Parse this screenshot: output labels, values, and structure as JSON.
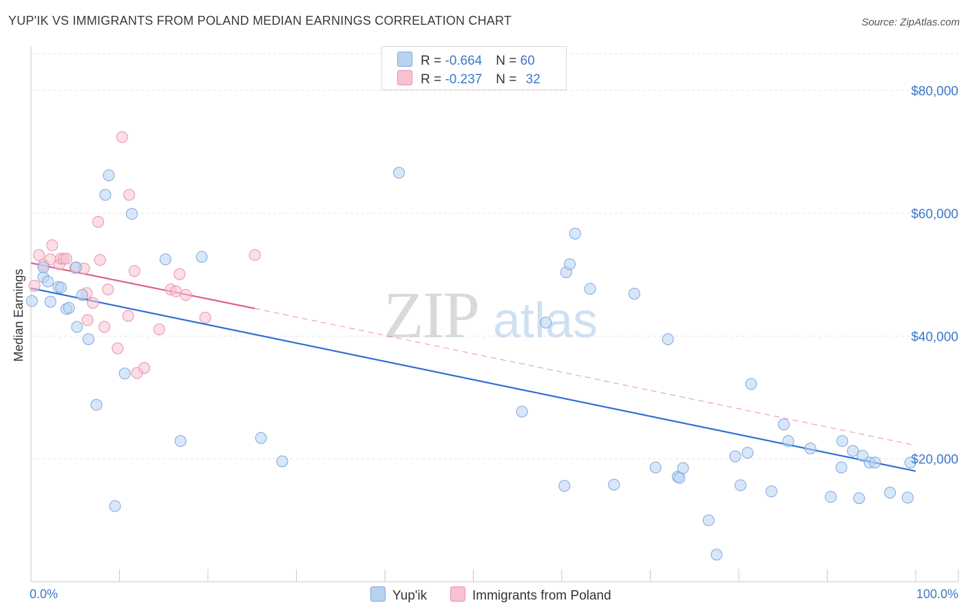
{
  "title": "YUP'IK VS IMMIGRANTS FROM POLAND MEDIAN EARNINGS CORRELATION CHART",
  "source": "Source: ZipAtlas.com",
  "watermark": {
    "zip": "ZIP",
    "atlas": "atlas"
  },
  "legend_top": {
    "rows": [
      {
        "r_label": "R = ",
        "r_value": "-0.664",
        "n_label": "N = ",
        "n_value": "60"
      },
      {
        "r_label": "R = ",
        "r_value": "-0.237",
        "n_label": "N = ",
        "n_value": "32"
      }
    ]
  },
  "legend_bottom": {
    "series1": "Yup'ik",
    "series2": "Immigrants from Poland"
  },
  "colors": {
    "blue_fill": "#b8d3f2",
    "blue_stroke": "#7aa7dd",
    "blue_line": "#2e6fcf",
    "pink_fill": "#f7c2d2",
    "pink_stroke": "#e990ad",
    "pink_line": "#e0608a",
    "axis_text": "#3b78c9",
    "grid": "#e3e3e3"
  },
  "chart_data": {
    "type": "scatter",
    "title": "YUP'IK VS IMMIGRANTS FROM POLAND MEDIAN EARNINGS CORRELATION CHART",
    "xlabel": "",
    "ylabel": "Median Earnings",
    "xlim": [
      0,
      100
    ],
    "ylim": [
      0,
      86000
    ],
    "x_tick_labels": [
      "0.0%",
      "100.0%"
    ],
    "y_ticks": [
      20000,
      40000,
      60000,
      80000
    ],
    "y_tick_labels": [
      "$20,000",
      "$40,000",
      "$60,000",
      "$80,000"
    ],
    "series": [
      {
        "name": "Yup'ik",
        "r": -0.664,
        "n": 60,
        "trend": {
          "x": [
            0,
            100
          ],
          "y": [
            47800,
            18000
          ]
        },
        "points": [
          [
            0.1,
            45700
          ],
          [
            1.4,
            49600
          ],
          [
            1.4,
            51200
          ],
          [
            1.9,
            48900
          ],
          [
            2.2,
            45600
          ],
          [
            3.1,
            48000
          ],
          [
            3.4,
            47900
          ],
          [
            4.0,
            44400
          ],
          [
            4.3,
            44600
          ],
          [
            5.1,
            51200
          ],
          [
            5.2,
            41500
          ],
          [
            5.8,
            46700
          ],
          [
            6.5,
            39500
          ],
          [
            7.4,
            28800
          ],
          [
            8.4,
            63000
          ],
          [
            8.8,
            66200
          ],
          [
            9.5,
            12300
          ],
          [
            10.6,
            33900
          ],
          [
            11.4,
            59900
          ],
          [
            15.2,
            52500
          ],
          [
            16.9,
            22900
          ],
          [
            19.3,
            52900
          ],
          [
            26.0,
            23400
          ],
          [
            28.4,
            19600
          ],
          [
            41.6,
            66600
          ],
          [
            55.5,
            27700
          ],
          [
            58.2,
            42200
          ],
          [
            60.3,
            15600
          ],
          [
            60.5,
            50400
          ],
          [
            60.9,
            51700
          ],
          [
            61.5,
            56700
          ],
          [
            63.2,
            47700
          ],
          [
            65.9,
            15800
          ],
          [
            68.2,
            46900
          ],
          [
            70.6,
            18600
          ],
          [
            72.0,
            39500
          ],
          [
            73.1,
            17100
          ],
          [
            73.3,
            16900
          ],
          [
            73.7,
            18500
          ],
          [
            76.6,
            10000
          ],
          [
            77.5,
            4400
          ],
          [
            79.6,
            20400
          ],
          [
            80.2,
            15700
          ],
          [
            81.0,
            21000
          ],
          [
            81.4,
            32200
          ],
          [
            83.7,
            14700
          ],
          [
            85.1,
            25600
          ],
          [
            85.6,
            22900
          ],
          [
            88.1,
            21700
          ],
          [
            90.4,
            13800
          ],
          [
            91.6,
            18600
          ],
          [
            91.7,
            22900
          ],
          [
            92.9,
            21300
          ],
          [
            93.6,
            13600
          ],
          [
            94.0,
            20500
          ],
          [
            94.8,
            19400
          ],
          [
            95.4,
            19400
          ],
          [
            97.1,
            14500
          ],
          [
            99.1,
            13700
          ],
          [
            99.4,
            19400
          ]
        ]
      },
      {
        "name": "Immigrants from Poland",
        "r": -0.237,
        "n": 32,
        "trend": {
          "x": [
            0,
            25.3
          ],
          "y": [
            51900,
            44500
          ],
          "dashed_to": {
            "x": 100,
            "y": 22200
          }
        },
        "points": [
          [
            0.4,
            48200
          ],
          [
            0.9,
            53200
          ],
          [
            1.4,
            51600
          ],
          [
            2.2,
            52500
          ],
          [
            2.4,
            54800
          ],
          [
            3.2,
            51700
          ],
          [
            3.4,
            52600
          ],
          [
            3.7,
            52600
          ],
          [
            4.0,
            52600
          ],
          [
            5.0,
            51100
          ],
          [
            6.0,
            51000
          ],
          [
            6.3,
            47000
          ],
          [
            6.4,
            42600
          ],
          [
            7.0,
            45400
          ],
          [
            7.6,
            58600
          ],
          [
            7.8,
            52400
          ],
          [
            8.3,
            41500
          ],
          [
            8.7,
            47600
          ],
          [
            9.8,
            38000
          ],
          [
            10.3,
            72400
          ],
          [
            11.0,
            43300
          ],
          [
            11.1,
            63000
          ],
          [
            11.7,
            50600
          ],
          [
            12.0,
            34000
          ],
          [
            12.8,
            34800
          ],
          [
            14.5,
            41100
          ],
          [
            15.8,
            47600
          ],
          [
            16.4,
            47300
          ],
          [
            16.8,
            50100
          ],
          [
            17.5,
            46700
          ],
          [
            19.7,
            43000
          ],
          [
            25.3,
            53200
          ]
        ]
      }
    ]
  }
}
